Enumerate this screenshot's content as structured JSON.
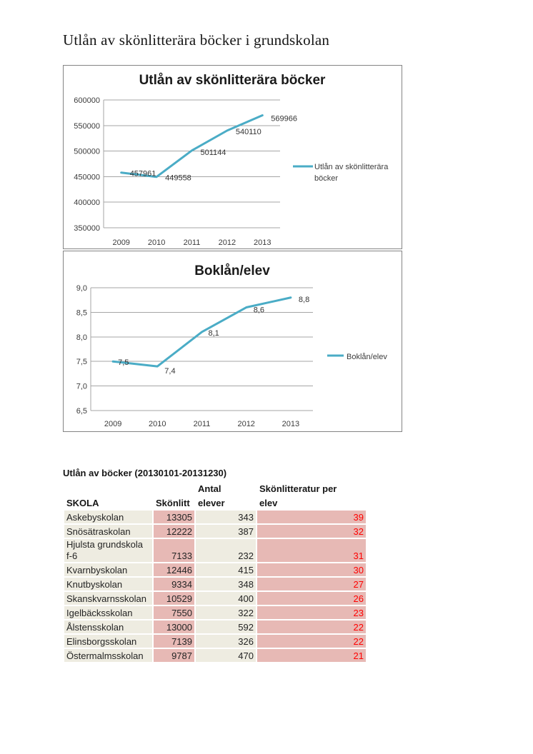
{
  "page_title": "Utlån av skönlitterära böcker i grundskolan",
  "chart_data": [
    {
      "type": "line",
      "title": "Utlån av skönlitterära böcker",
      "categories": [
        "2009",
        "2010",
        "2011",
        "2012",
        "2013"
      ],
      "series": [
        {
          "name": "Utlån av skönlitterära böcker",
          "values": [
            457961,
            449558,
            501144,
            540110,
            569966
          ]
        }
      ],
      "ylim": [
        350000,
        600000
      ],
      "ytick_step": 50000,
      "decimals": 0,
      "grid": true,
      "legend_position": "right",
      "color": "#4AACC6"
    },
    {
      "type": "line",
      "title": "Boklån/elev",
      "categories": [
        "2009",
        "2010",
        "2011",
        "2012",
        "2013"
      ],
      "series": [
        {
          "name": "Boklån/elev",
          "values": [
            7.5,
            7.4,
            8.1,
            8.6,
            8.8
          ]
        }
      ],
      "ylim": [
        6.5,
        9.0
      ],
      "ytick_step": 0.5,
      "decimals": 1,
      "grid": true,
      "legend_position": "right",
      "color": "#4AACC6"
    }
  ],
  "table": {
    "title": "Utlån av böcker (20130101-20131230)",
    "header_rows": [
      [
        "",
        "",
        "Antal",
        "Skönlitteratur per"
      ],
      [
        "SKOLA",
        "Skönlitt",
        "elever",
        "elev"
      ]
    ],
    "rows": [
      {
        "school": "Askebyskolan",
        "skonlitt": "13305",
        "elever": "343",
        "per_elev": "39"
      },
      {
        "school": "Snösätraskolan",
        "skonlitt": "12222",
        "elever": "387",
        "per_elev": "32"
      },
      {
        "school": "Hjulsta grundskola f-6",
        "skonlitt": "7133",
        "elever": "232",
        "per_elev": "31"
      },
      {
        "school": "Kvarnbyskolan",
        "skonlitt": "12446",
        "elever": "415",
        "per_elev": "30"
      },
      {
        "school": "Knutbyskolan",
        "skonlitt": "9334",
        "elever": "348",
        "per_elev": "27"
      },
      {
        "school": "Skanskvarnsskolan",
        "skonlitt": "10529",
        "elever": "400",
        "per_elev": "26"
      },
      {
        "school": "Igelbäcksskolan",
        "skonlitt": "7550",
        "elever": "322",
        "per_elev": "23"
      },
      {
        "school": "Ålstensskolan",
        "skonlitt": "13000",
        "elever": "592",
        "per_elev": "22"
      },
      {
        "school": "Elinsborgsskolan",
        "skonlitt": "7139",
        "elever": "326",
        "per_elev": "22"
      },
      {
        "school": "Östermalmsskolan",
        "skonlitt": "9787",
        "elever": "470",
        "per_elev": "21"
      }
    ]
  },
  "colors": {
    "line": "#4AACC6",
    "beige": "#EEECE1",
    "pink": "#E7B9B5",
    "value_red": "#FF0000",
    "header_red": "#963634",
    "grid": "#A5A5A5",
    "frame_border": "#848484"
  }
}
